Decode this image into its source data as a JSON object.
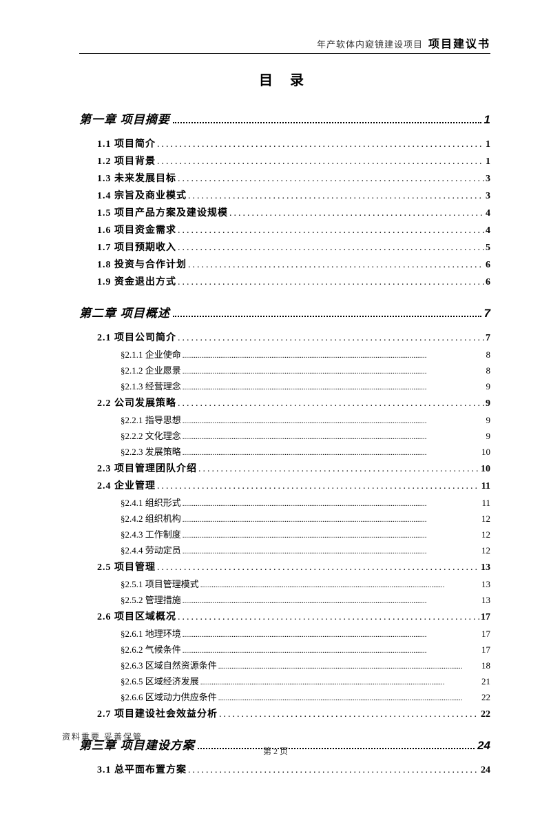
{
  "header": {
    "small": "年产软体内窥镜建设项目",
    "bold": "项目建议书"
  },
  "title": "目 录",
  "chapters": [
    {
      "label": "第一章 项目摘要",
      "page": "1",
      "sections": [
        {
          "label": "1.1 项目简介",
          "page": "1"
        },
        {
          "label": "1.2 项目背景",
          "page": "1"
        },
        {
          "label": "1.3 未来发展目标",
          "page": "3"
        },
        {
          "label": "1.4 宗旨及商业模式",
          "page": "3"
        },
        {
          "label": "1.5 项目产品方案及建设规模",
          "page": "4"
        },
        {
          "label": "1.6 项目资金需求",
          "page": "4"
        },
        {
          "label": "1.7 项目预期收入",
          "page": "5"
        },
        {
          "label": "1.8 投资与合作计划",
          "page": "6"
        },
        {
          "label": "1.9 资金退出方式",
          "page": "6"
        }
      ]
    },
    {
      "label": "第二章 项目概述",
      "page": "7",
      "sections": [
        {
          "label": "2.1 项目公司简介",
          "page": "7",
          "subs": [
            {
              "label": "§2.1.1 企业使命",
              "page": "8"
            },
            {
              "label": "§2.1.2 企业愿景",
              "page": "8"
            },
            {
              "label": "§2.1.3 经营理念",
              "page": "9"
            }
          ]
        },
        {
          "label": "2.2 公司发展策略",
          "page": "9",
          "subs": [
            {
              "label": "§2.2.1 指导思想",
              "page": "9"
            },
            {
              "label": "§2.2.2 文化理念",
              "page": "9"
            },
            {
              "label": "§2.2.3 发展策略",
              "page": "10"
            }
          ]
        },
        {
          "label": "2.3 项目管理团队介绍",
          "page": "10"
        },
        {
          "label": "2.4 企业管理",
          "page": "11",
          "subs": [
            {
              "label": "§2.4.1 组织形式",
              "page": "11"
            },
            {
              "label": "§2.4.2 组织机构",
              "page": "12"
            },
            {
              "label": "§2.4.3 工作制度",
              "page": "12"
            },
            {
              "label": "§2.4.4 劳动定员",
              "page": "12"
            }
          ]
        },
        {
          "label": "2.5 项目管理",
          "page": "13",
          "subs": [
            {
              "label": "§2.5.1 项目管理模式",
              "page": "13"
            },
            {
              "label": "§2.5.2 管理措施",
              "page": "13"
            }
          ]
        },
        {
          "label": "2.6 项目区域概况",
          "page": "17",
          "subs": [
            {
              "label": "§2.6.1 地理环境",
              "page": "17"
            },
            {
              "label": "§2.6.2 气候条件",
              "page": "17"
            },
            {
              "label": "§2.6.3 区域自然资源条件",
              "page": "18"
            },
            {
              "label": "§2.6.5 区域经济发展",
              "page": "21"
            },
            {
              "label": "§2.6.6 区域动力供应条件",
              "page": "22"
            }
          ]
        },
        {
          "label": "2.7 项目建设社会效益分析",
          "page": "22"
        }
      ]
    },
    {
      "label": "第三章 项目建设方案",
      "page": "24",
      "sections": [
        {
          "label": "3.1 总平面布置方案",
          "page": "24"
        }
      ]
    }
  ],
  "footer_note": "资料重要  妥善保管",
  "page_number": "第 2 页"
}
